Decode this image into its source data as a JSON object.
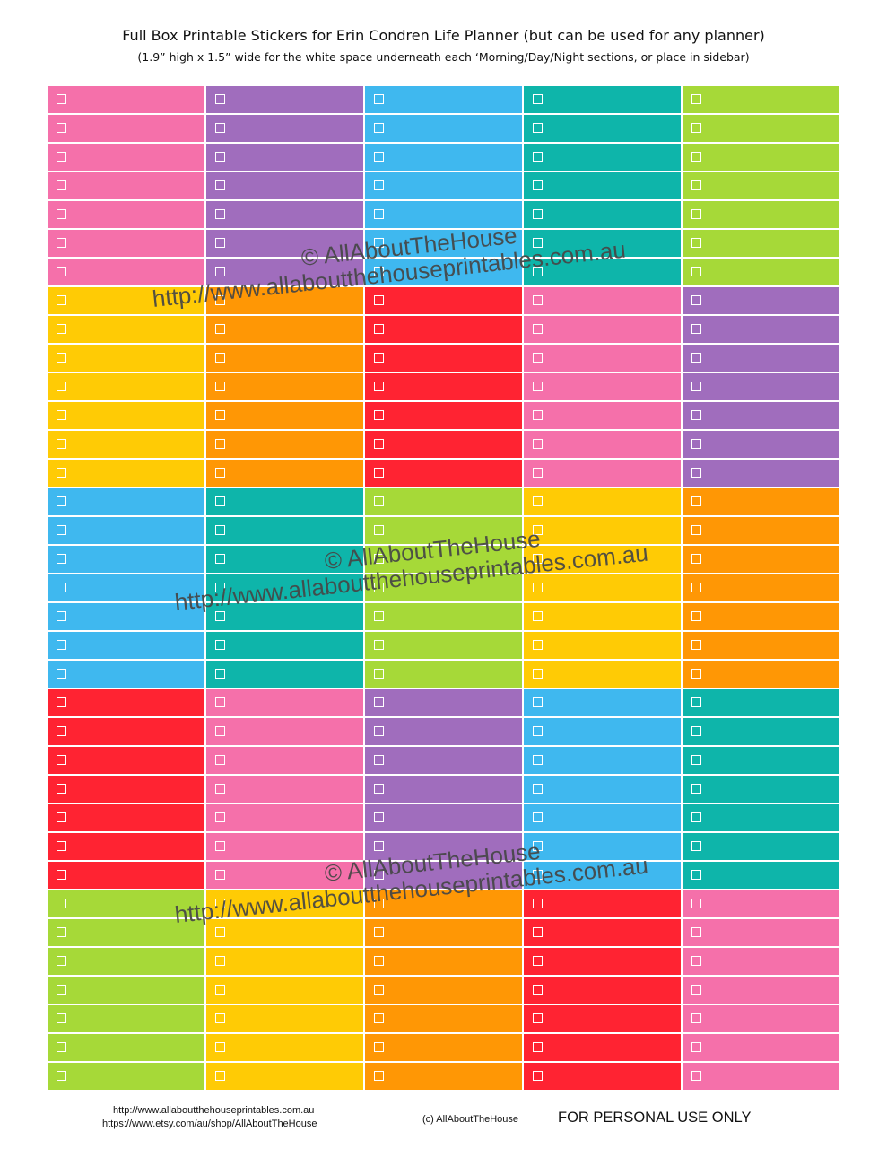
{
  "header": {
    "title": "Full Box Printable Stickers for Erin Condren Life Planner (but can be used for any planner)",
    "subtitle": "(1.9” high x 1.5” wide for the white space underneath each ‘Morning/Day/Night sections, or place in sidebar)"
  },
  "colors": {
    "pink": "#f570aa",
    "purple": "#a06dbd",
    "blue": "#3fb8ef",
    "teal": "#0eb5aa",
    "green": "#a6d938",
    "yellow": "#ffcb05",
    "orange": "#ff9705",
    "red": "#ff2332"
  },
  "grid": {
    "rows_per_block": 7,
    "blocks": [
      [
        "pink",
        "purple",
        "blue",
        "teal",
        "green"
      ],
      [
        "yellow",
        "orange",
        "red",
        "pink",
        "purple"
      ],
      [
        "blue",
        "teal",
        "green",
        "yellow",
        "orange"
      ],
      [
        "red",
        "pink",
        "purple",
        "blue",
        "teal"
      ],
      [
        "green",
        "yellow",
        "orange",
        "red",
        "pink"
      ]
    ]
  },
  "watermarks": [
    {
      "brand": "©  AllAboutTheHouse",
      "url": "http://www.allaboutthehouseprintables.com.au"
    },
    {
      "brand": "©  AllAboutTheHouse",
      "url": "http://www.allaboutthehouseprintables.com.au"
    },
    {
      "brand": "©  AllAboutTheHouse",
      "url": "http://www.allaboutthehouseprintables.com.au"
    }
  ],
  "footer": {
    "website": "http://www.allaboutthehouseprintables.com.au",
    "etsy": "https://www.etsy.com/au/shop/AllAboutTheHouse",
    "copyright": "(c) AllAboutTheHouse",
    "notice": "FOR PERSONAL USE ONLY"
  }
}
